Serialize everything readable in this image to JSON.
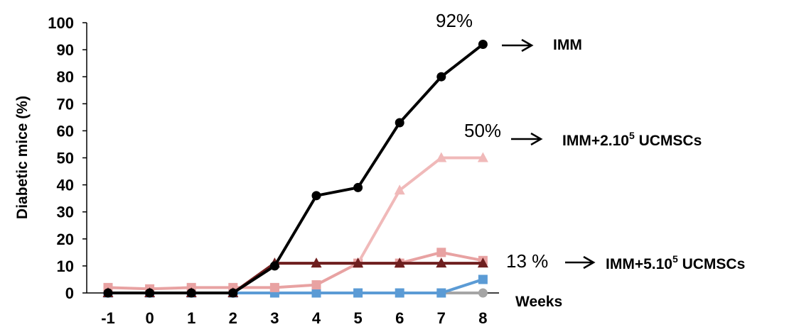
{
  "chart_data": {
    "type": "line",
    "ylabel": "Diabetic mice (%)",
    "xlabel": "Weeks",
    "ylim": [
      0,
      100
    ],
    "yticks": [
      0,
      10,
      20,
      30,
      40,
      50,
      60,
      70,
      80,
      90,
      100
    ],
    "x": [
      -1,
      0,
      1,
      2,
      3,
      4,
      5,
      6,
      7,
      8
    ],
    "grid": false,
    "series": [
      {
        "name": "",
        "color": "#a5a5a5",
        "marker": "circle",
        "values": [
          0,
          0,
          0,
          0,
          0,
          0,
          0,
          0,
          0,
          0
        ]
      },
      {
        "name": "",
        "color": "#5b9bd5",
        "marker": "square",
        "values": [
          0,
          0,
          0,
          0,
          0,
          0,
          0,
          0,
          0,
          5
        ]
      },
      {
        "name": "",
        "color": "#e8a2a2",
        "marker": "square",
        "values": [
          2,
          1.5,
          2,
          2,
          2,
          3,
          11,
          11,
          15,
          12
        ]
      },
      {
        "name": "",
        "color": "#f0b9b9",
        "marker": "triangle",
        "values": [
          0,
          0,
          0,
          0,
          11,
          11,
          11,
          38,
          50,
          50
        ]
      },
      {
        "name": "",
        "color": "#6e1f1f",
        "marker": "triangle",
        "values": [
          0,
          0,
          0,
          0,
          11,
          11,
          11,
          11,
          11,
          11
        ]
      },
      {
        "name": "",
        "color": "#000000",
        "marker": "circle",
        "values": [
          0,
          0,
          0,
          0,
          10,
          36,
          39,
          63,
          80,
          92
        ]
      }
    ],
    "annotations": [
      {
        "pct": "92%",
        "label": "IMM",
        "label_base": "IMM",
        "label_sup": "",
        "label_tail": ""
      },
      {
        "pct": "50%",
        "label": "IMM+2.10⁵ UCMSCs",
        "label_base": "IMM+2.10",
        "label_sup": "5",
        "label_tail": " UCMSCs"
      },
      {
        "pct": "13 %",
        "label": "IMM+5.10⁵ UCMSCs",
        "label_base": "IMM+5.10",
        "label_sup": "5",
        "label_tail": " UCMSCs"
      }
    ]
  }
}
